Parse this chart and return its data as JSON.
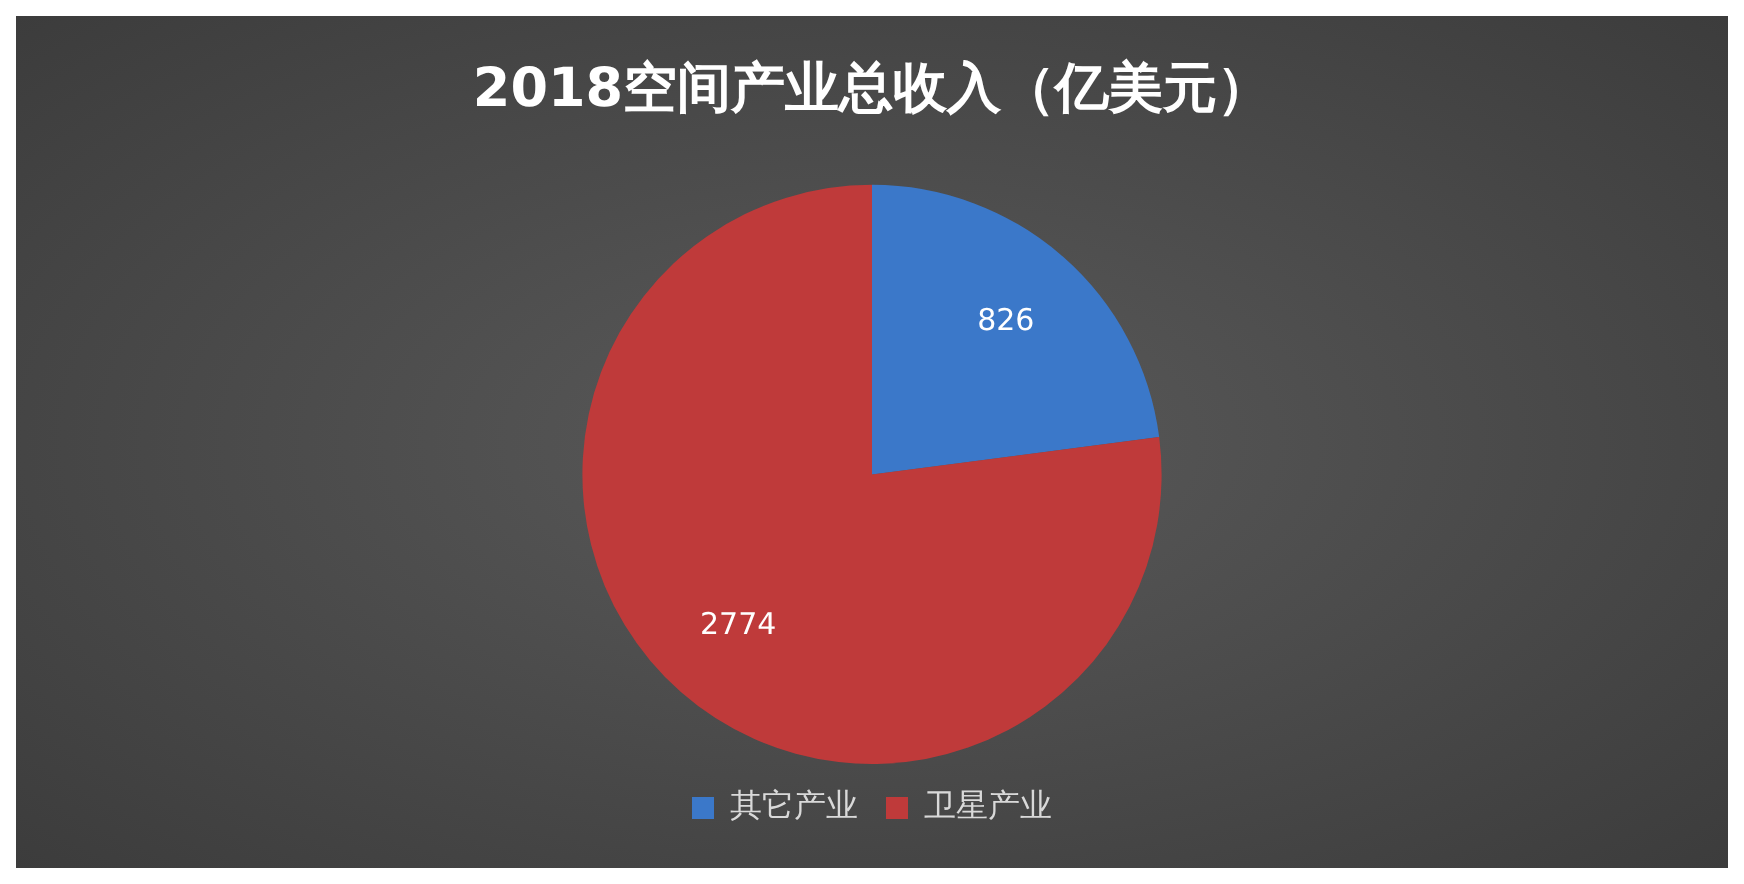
{
  "chart_data": {
    "type": "pie",
    "title": "2018空间产业总收入（亿美元）",
    "categories": [
      "其它产业",
      "卫星产业"
    ],
    "values": [
      826,
      2774
    ],
    "colors": [
      "#3b78c9",
      "#bf3a3a"
    ],
    "data_labels": true,
    "legend": "bottom"
  }
}
